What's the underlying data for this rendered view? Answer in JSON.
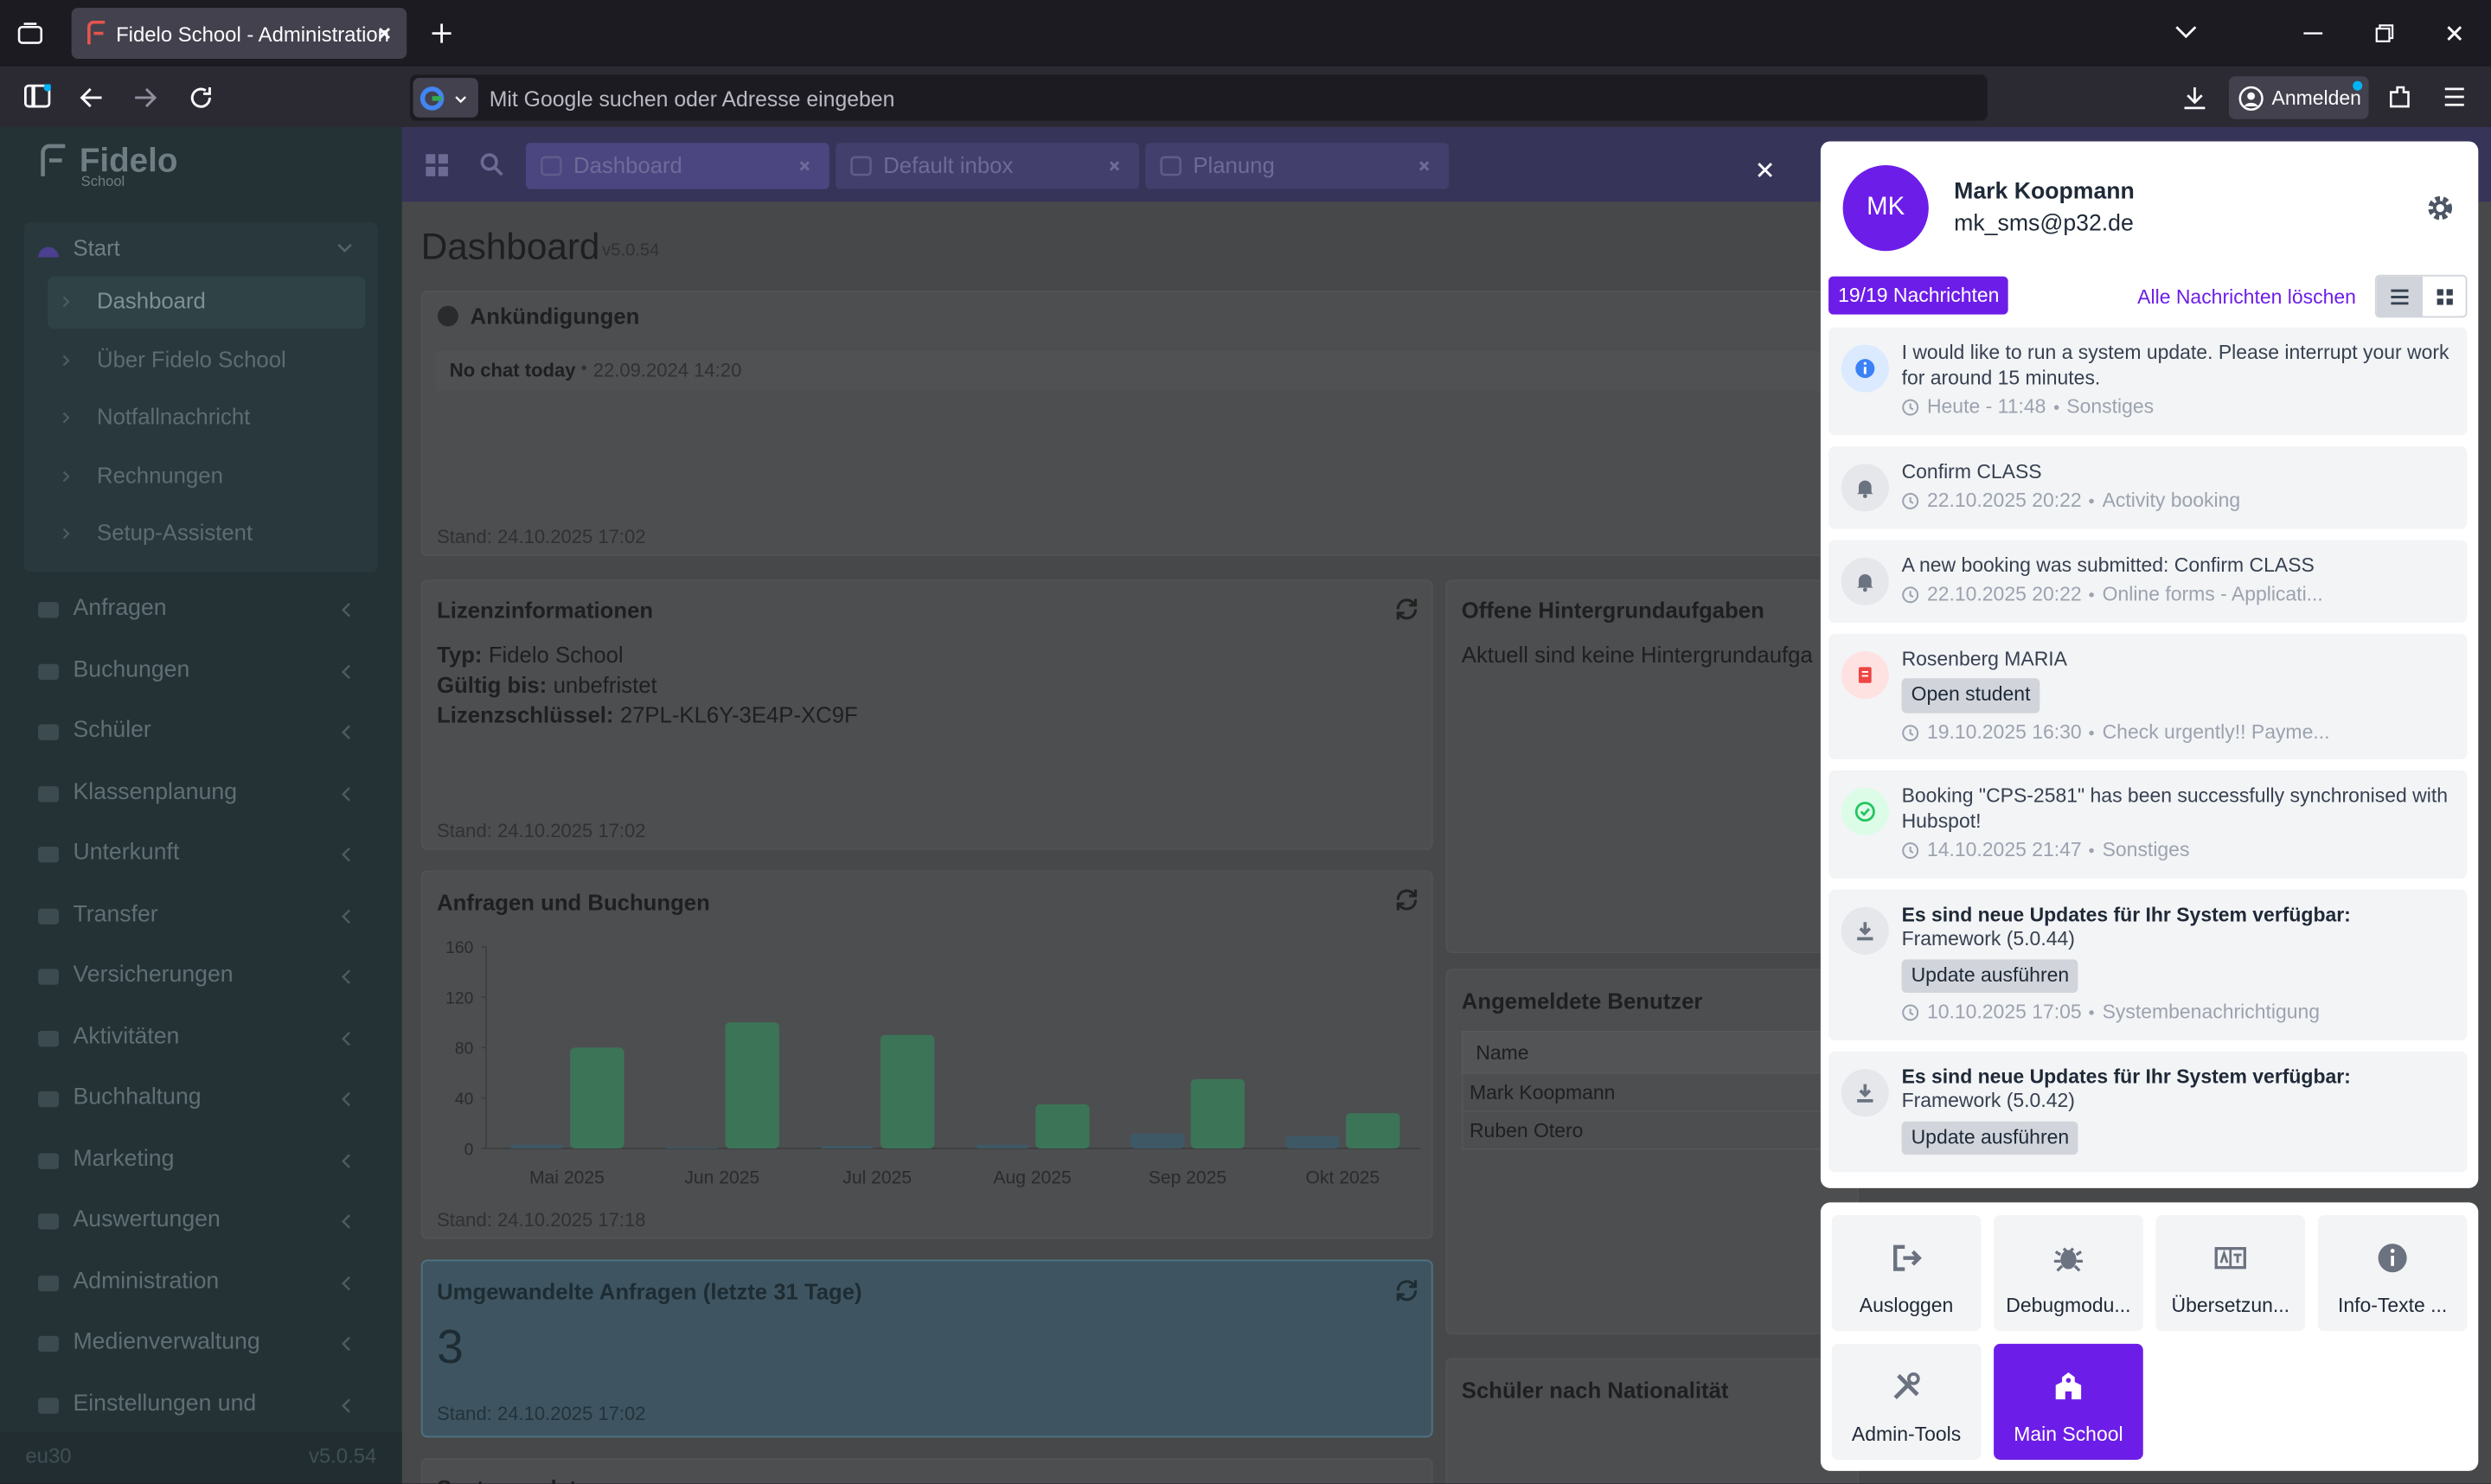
{
  "browser": {
    "tab_title": "Fidelo School - Administration",
    "address_placeholder": "Mit Google suchen oder Adresse eingeben",
    "sign_in": "Anmelden"
  },
  "sidebar": {
    "logo": "Fidelo",
    "logo_sub": "School",
    "start": {
      "label": "Start",
      "children": [
        "Dashboard",
        "Über Fidelo School",
        "Notfallnachricht",
        "Rechnungen",
        "Setup-Assistent"
      ]
    },
    "menu": [
      "Anfragen",
      "Buchungen",
      "Schüler",
      "Klassenplanung",
      "Unterkunft",
      "Transfer",
      "Versicherungen",
      "Aktivitäten",
      "Buchhaltung",
      "Marketing",
      "Auswertungen",
      "Administration",
      "Medienverwaltung",
      "Einstellungen und"
    ],
    "footer_left": "eu30",
    "footer_right": "v5.0.54"
  },
  "tabs": [
    "Dashboard",
    "Default inbox",
    "Planung"
  ],
  "page": {
    "title": "Dashboard",
    "version": "v5.0.54"
  },
  "announcements": {
    "title": "Ankündigungen",
    "item_title": "No chat today",
    "item_date": "22.09.2024 14:20",
    "stand": "Stand: 24.10.2025 17:02"
  },
  "license": {
    "title": "Lizenzinformationen",
    "rows": [
      [
        "Typ:",
        "Fidelo School"
      ],
      [
        "Gültig bis:",
        "unbefristet"
      ],
      [
        "Lizenzschlüssel:",
        "27PL-KL6Y-3E4P-XC9F"
      ]
    ],
    "stand": "Stand: 24.10.2025 17:02"
  },
  "background_tasks": {
    "title": "Offene Hintergrundaufgaben",
    "text": "Aktuell sind keine Hintergrundaufga"
  },
  "requests_chart": {
    "title": "Anfragen und Buchungen",
    "stand": "Stand: 24.10.2025 17:18",
    "chart_data": {
      "type": "bar",
      "categories": [
        "Mai 2025",
        "Jun 2025",
        "Jul 2025",
        "Aug 2025",
        "Sep 2025",
        "Okt 2025"
      ],
      "series": [
        {
          "color": "#3f5866",
          "values": [
            3,
            1,
            2,
            3,
            12,
            10
          ]
        },
        {
          "color": "#3c7458",
          "values": [
            80,
            100,
            90,
            35,
            55,
            28
          ]
        }
      ],
      "ylim": [
        0,
        160
      ],
      "yticks": [
        0,
        40,
        80,
        120,
        160
      ]
    }
  },
  "converted": {
    "title": "Umgewandelte Anfragen (letzte 31 Tage)",
    "value": "3",
    "stand": "Stand: 24.10.2025 17:02"
  },
  "logged_in": {
    "title": "Angemeldete Benutzer",
    "header": "Name",
    "rows": [
      "Mark Koopmann",
      "Ruben Otero"
    ]
  },
  "nationality": {
    "title": "Schüler nach Nationalität"
  },
  "system_updates": {
    "title": "Systemupdates"
  },
  "panel": {
    "initials": "MK",
    "name": "Mark Koopmann",
    "email": "mk_sms@p32.de",
    "count": "19/19 Nachrichten",
    "clear_all": "Alle Nachrichten löschen",
    "notifications": [
      {
        "icon": "info",
        "title": "I would like to run a system update. Please interrupt your work for around 15 minutes.",
        "time": "Heute - 11:48",
        "category": "Sonstiges"
      },
      {
        "icon": "bell",
        "title": "Confirm CLASS",
        "time": "22.10.2025 20:22",
        "category": "Activity booking"
      },
      {
        "icon": "bell",
        "title": "A new booking was submitted: Confirm CLASS",
        "time": "22.10.2025 20:22",
        "category": "Online forms - Applicati..."
      },
      {
        "icon": "alert",
        "title": "Rosenberg MARIA",
        "button": "Open student",
        "time": "19.10.2025 16:30",
        "category": "Check urgently!! Payme..."
      },
      {
        "icon": "check",
        "title": "Booking \"CPS-2581\" has been successfully synchronised with Hubspot!",
        "time": "14.10.2025 21:47",
        "category": "Sonstiges"
      },
      {
        "icon": "download",
        "bold": true,
        "title": "Es sind neue Updates für Ihr System verfügbar:",
        "text": "Framework (5.0.44)",
        "button": "Update ausführen",
        "time": "10.10.2025 17:05",
        "category": "Systembenachrichtigung"
      },
      {
        "icon": "download",
        "bold": true,
        "title": "Es sind neue Updates für Ihr System verfügbar:",
        "text": "Framework (5.0.42)",
        "button": "Update ausführen"
      }
    ],
    "actions": [
      {
        "icon": "logout",
        "label": "Ausloggen"
      },
      {
        "icon": "bug",
        "label": "Debugmodu..."
      },
      {
        "icon": "translate",
        "label": "Übersetzun..."
      },
      {
        "icon": "info",
        "label": "Info-Texte ..."
      },
      {
        "icon": "tools",
        "label": "Admin-Tools"
      },
      {
        "icon": "school",
        "label": "Main School",
        "active": true
      }
    ]
  }
}
